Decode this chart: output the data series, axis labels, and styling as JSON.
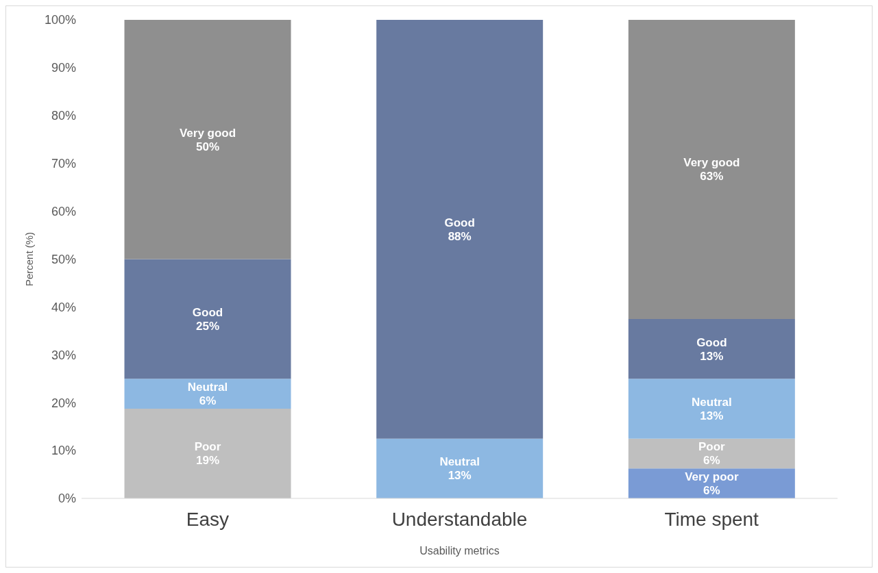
{
  "chart_data": {
    "type": "bar",
    "stacked": true,
    "xlabel": "Usability metrics",
    "ylabel": "Percent (%)",
    "categories": [
      "Easy",
      "Understandable",
      "Time spent"
    ],
    "series": [
      {
        "name": "Very poor",
        "color": "#7a9bd5",
        "values": [
          null,
          null,
          6.25
        ],
        "value_labels": [
          null,
          null,
          "6%"
        ]
      },
      {
        "name": "Poor",
        "color": "#bfbfbf",
        "values": [
          18.75,
          null,
          6.25
        ],
        "value_labels": [
          "19%",
          null,
          "6%"
        ]
      },
      {
        "name": "Neutral",
        "color": "#8db8e2",
        "values": [
          6.25,
          12.5,
          12.5
        ],
        "value_labels": [
          "6%",
          "13%",
          "13%"
        ]
      },
      {
        "name": "Good",
        "color": "#687aa0",
        "values": [
          25,
          87.5,
          12.5
        ],
        "value_labels": [
          "25%",
          "88%",
          "13%"
        ]
      },
      {
        "name": "Very good",
        "color": "#8f8f8f",
        "values": [
          50,
          null,
          62.5
        ],
        "value_labels": [
          "50%",
          null,
          "63%"
        ]
      }
    ],
    "ylim": [
      0,
      100
    ],
    "yticks": [
      {
        "value": 0,
        "label": "0%"
      },
      {
        "value": 10,
        "label": "10%"
      },
      {
        "value": 20,
        "label": "20%"
      },
      {
        "value": 30,
        "label": "30%"
      },
      {
        "value": 40,
        "label": "40%"
      },
      {
        "value": 50,
        "label": "50%"
      },
      {
        "value": 60,
        "label": "60%"
      },
      {
        "value": 70,
        "label": "70%"
      },
      {
        "value": 80,
        "label": "80%"
      },
      {
        "value": 90,
        "label": "90%"
      },
      {
        "value": 100,
        "label": "100%"
      }
    ],
    "grid": false,
    "legend": false
  }
}
